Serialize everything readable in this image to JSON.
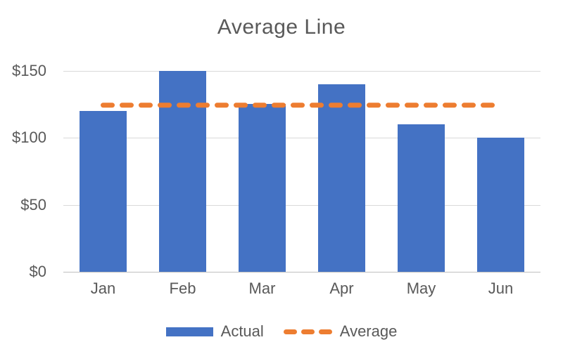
{
  "chart_data": {
    "type": "bar",
    "title": "Average Line",
    "categories": [
      "Jan",
      "Feb",
      "Mar",
      "Apr",
      "May",
      "Jun"
    ],
    "series": [
      {
        "name": "Actual",
        "type": "bar",
        "values": [
          120,
          150,
          125,
          140,
          110,
          100
        ],
        "color": "#4472C4"
      },
      {
        "name": "Average",
        "type": "line",
        "style": "dashed",
        "value": 124.2,
        "color": "#ED7D31"
      }
    ],
    "ylim": [
      0,
      150
    ],
    "yticks": [
      {
        "value": 0,
        "label": "$0"
      },
      {
        "value": 50,
        "label": "$50"
      },
      {
        "value": 100,
        "label": "$100"
      },
      {
        "value": 150,
        "label": "$150"
      }
    ],
    "grid": true,
    "legend_position": "bottom"
  },
  "legend": {
    "items": [
      {
        "label": "Actual",
        "swatch": "bar",
        "color": "#4472C4"
      },
      {
        "label": "Average",
        "swatch": "dashed-line",
        "color": "#ED7D31"
      }
    ]
  },
  "colors": {
    "background": "#FFFFFF",
    "gridline": "#D9D9D9",
    "axis_line": "#BFBFBF",
    "text": "#595959",
    "title_text": "#595959"
  }
}
